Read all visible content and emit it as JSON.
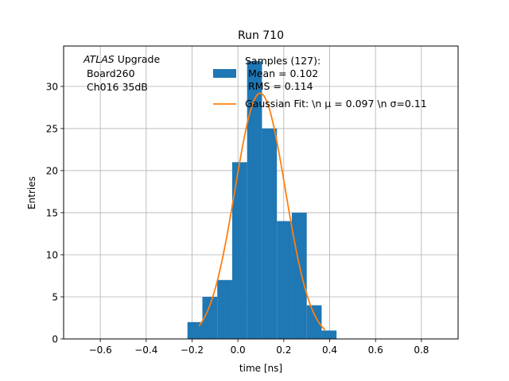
{
  "chart_data": {
    "type": "bar",
    "title": "Run 710",
    "xlabel": "time [ns]",
    "ylabel": "Entries",
    "xlim": [
      -0.76,
      0.96
    ],
    "ylim": [
      0,
      34.8
    ],
    "xticks": [
      -0.6,
      -0.4,
      -0.2,
      0.0,
      0.2,
      0.4,
      0.6,
      0.8
    ],
    "xtick_labels": [
      "−0.6",
      "−0.4",
      "−0.2",
      "0.0",
      "0.2",
      "0.4",
      "0.6",
      "0.8"
    ],
    "yticks": [
      0,
      5,
      10,
      15,
      20,
      25,
      30
    ],
    "ytick_labels": [
      "0",
      "5",
      "10",
      "15",
      "20",
      "25",
      "30"
    ],
    "grid": true,
    "bin_edges": [
      -0.22,
      -0.155,
      -0.09,
      -0.025,
      0.04,
      0.105,
      0.17,
      0.235,
      0.3,
      0.365,
      0.43
    ],
    "counts": [
      2,
      5,
      7,
      21,
      33,
      25,
      14,
      15,
      4,
      1
    ],
    "fit": {
      "mu": 0.097,
      "sigma": 0.11,
      "amplitude": 29.2,
      "x_range": [
        -0.17,
        0.38
      ]
    },
    "annotation": {
      "line1_italic": "ATLAS",
      "line1_rest": " Upgrade",
      "line2": " Board260",
      "line3": " Ch016 35dB"
    },
    "legend": {
      "placement": "top-center",
      "hist_lines": [
        "Samples (127):",
        " Mean = 0.102",
        " RMS = 0.114"
      ],
      "fit_label": "Gaussian Fit: \\n μ = 0.097 \\n σ=0.11"
    },
    "colors": {
      "bars": "#1f77b4",
      "fit": "#ff7f0e",
      "grid": "#b0b0b0",
      "axes": "#000000"
    }
  }
}
